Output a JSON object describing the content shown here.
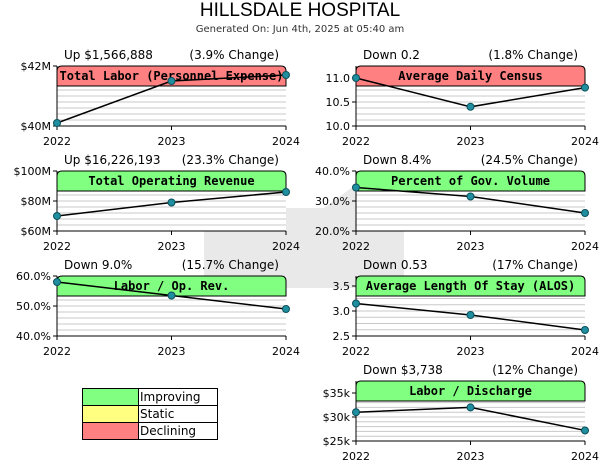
{
  "header": {
    "title": "HILLSDALE HOSPITAL",
    "subtitle": "Generated On: Jun 4th, 2025 at 05:40 am"
  },
  "legend": {
    "items": [
      {
        "label": "Improving",
        "color": "#80ff80"
      },
      {
        "label": "Static",
        "color": "#ffff80"
      },
      {
        "label": "Declining",
        "color": "#ff8080"
      }
    ]
  },
  "chart_data": [
    {
      "type": "line",
      "title": "Total Labor (Personnel Expense)",
      "status": "declining",
      "change_text": "Up $1,566,888",
      "pct_text": "(3.9% Change)",
      "x": [
        "2022",
        "2023",
        "2024"
      ],
      "values": [
        40.1,
        41.5,
        41.7
      ],
      "ylim": [
        40,
        42
      ],
      "yticks": [
        40,
        42
      ],
      "ytick_labels": [
        "$40M",
        "$42M"
      ],
      "grid_step": 0.2
    },
    {
      "type": "line",
      "title": "Average Daily Census",
      "status": "declining",
      "change_text": "Down 0.2",
      "pct_text": "(1.8% Change)",
      "x": [
        "2022",
        "2023",
        "2024"
      ],
      "values": [
        11.0,
        10.4,
        10.8
      ],
      "ylim": [
        10,
        11.25
      ],
      "yticks": [
        10,
        10.5,
        11
      ],
      "ytick_labels": [
        "10.0",
        "10.5",
        "11.0"
      ],
      "grid_step": 0.125
    },
    {
      "type": "line",
      "title": "Total Operating Revenue",
      "status": "improving",
      "change_text": "Up $16,226,193",
      "pct_text": "(23.3% Change)",
      "x": [
        "2022",
        "2023",
        "2024"
      ],
      "values": [
        70,
        79,
        86
      ],
      "ylim": [
        60,
        100
      ],
      "yticks": [
        60,
        80,
        100
      ],
      "ytick_labels": [
        "$60M",
        "$80M",
        "$100M"
      ],
      "grid_step": 4
    },
    {
      "type": "line",
      "title": "Percent of Gov. Volume",
      "status": "improving",
      "change_text": "Down 8.4%",
      "pct_text": "(24.5% Change)",
      "x": [
        "2022",
        "2023",
        "2024"
      ],
      "values": [
        34.5,
        31.5,
        26
      ],
      "ylim": [
        20,
        40
      ],
      "yticks": [
        20,
        30,
        40
      ],
      "ytick_labels": [
        "20.0%",
        "30.0%",
        "40.0%"
      ],
      "grid_step": 2
    },
    {
      "type": "line",
      "title": "Labor / Op. Rev.",
      "status": "improving",
      "change_text": "Down 9.0%",
      "pct_text": "(15.7% Change)",
      "x": [
        "2022",
        "2023",
        "2024"
      ],
      "values": [
        58,
        53.5,
        49
      ],
      "ylim": [
        40,
        60
      ],
      "yticks": [
        40,
        50,
        60
      ],
      "ytick_labels": [
        "40.0%",
        "50.0%",
        "60.0%"
      ],
      "grid_step": 2
    },
    {
      "type": "line",
      "title": "Average Length Of Stay (ALOS)",
      "status": "improving",
      "change_text": "Down 0.53",
      "pct_text": "(17% Change)",
      "x": [
        "2022",
        "2023",
        "2024"
      ],
      "values": [
        3.15,
        2.92,
        2.62
      ],
      "ylim": [
        2.5,
        3.7
      ],
      "yticks": [
        2.5,
        3,
        3.5
      ],
      "ytick_labels": [
        "2.5",
        "3.0",
        "3.5"
      ],
      "grid_step": 0.125
    },
    {
      "type": "line",
      "title": "Labor / Discharge",
      "status": "improving",
      "change_text": "Down $3,738",
      "pct_text": "(12% Change)",
      "x": [
        "2022",
        "2023",
        "2024"
      ],
      "values": [
        31,
        32,
        27.2
      ],
      "ylim": [
        25,
        37.5
      ],
      "yticks": [
        25,
        30,
        35
      ],
      "ytick_labels": [
        "$25k",
        "$30k",
        "$35k"
      ],
      "grid_step": 1
    }
  ]
}
